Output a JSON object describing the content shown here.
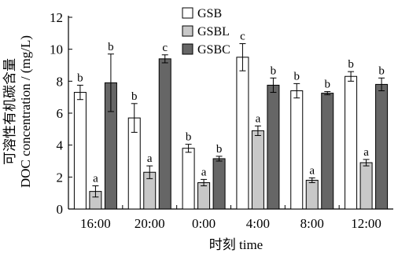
{
  "chart_data": {
    "type": "bar",
    "categories": [
      "16:00",
      "20:00",
      "0:00",
      "4:00",
      "8:00",
      "12:00"
    ],
    "series": [
      {
        "name": "GSB",
        "color": "#ffffff",
        "values": [
          7.3,
          5.7,
          3.8,
          9.5,
          7.4,
          8.3
        ],
        "errors": [
          0.45,
          0.9,
          0.25,
          0.85,
          0.45,
          0.3
        ],
        "labels": [
          "b",
          "b",
          "b",
          "c",
          "b",
          "b"
        ]
      },
      {
        "name": "GSBL",
        "color": "#c8c8c8",
        "values": [
          1.1,
          2.3,
          1.65,
          4.9,
          1.8,
          2.9
        ],
        "errors": [
          0.35,
          0.4,
          0.2,
          0.3,
          0.15,
          0.2
        ],
        "labels": [
          "a",
          "a",
          "a",
          "a",
          "a",
          "a"
        ]
      },
      {
        "name": "GSBC",
        "color": "#666666",
        "values": [
          7.9,
          9.4,
          3.15,
          7.75,
          7.25,
          7.8
        ],
        "errors": [
          1.8,
          0.25,
          0.15,
          0.45,
          0.1,
          0.4
        ],
        "labels": [
          "b",
          "c",
          "b",
          "b",
          "b",
          "b"
        ]
      }
    ],
    "ylabel_cn": "可溶性有机碳含量",
    "ylabel": "DOC concentration / (mg/L)",
    "xlabel": "时刻  time",
    "ylim": [
      0,
      12
    ],
    "yticks": [
      0,
      2,
      4,
      6,
      8,
      10,
      12
    ],
    "legend_position": "top-center",
    "grid": false
  }
}
